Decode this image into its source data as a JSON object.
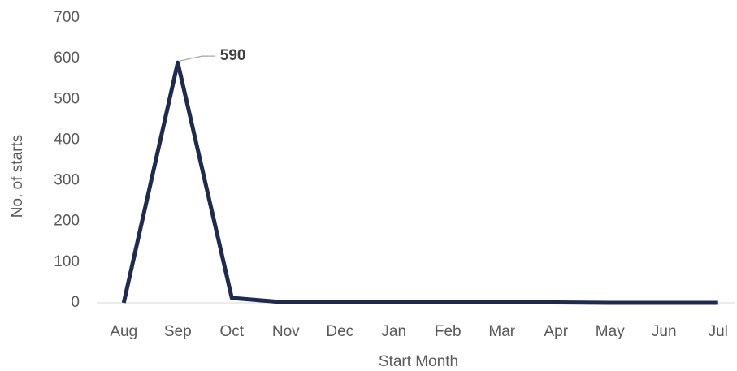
{
  "chart_data": {
    "type": "line",
    "x_label": "Start Month",
    "y_label": "No. of starts",
    "categories": [
      "Aug",
      "Sep",
      "Oct",
      "Nov",
      "Dec",
      "Jan",
      "Feb",
      "Mar",
      "Apr",
      "May",
      "Jun",
      "Jul"
    ],
    "values": [
      0,
      590,
      12,
      1,
      1,
      1,
      2,
      1,
      1,
      0,
      0,
      0
    ],
    "labeled_points": [
      1
    ],
    "color": "#1f2a4f",
    "ylim": [
      0,
      700
    ],
    "yticks": [
      0,
      100,
      200,
      300,
      400,
      500,
      600,
      700
    ],
    "grid": false
  }
}
